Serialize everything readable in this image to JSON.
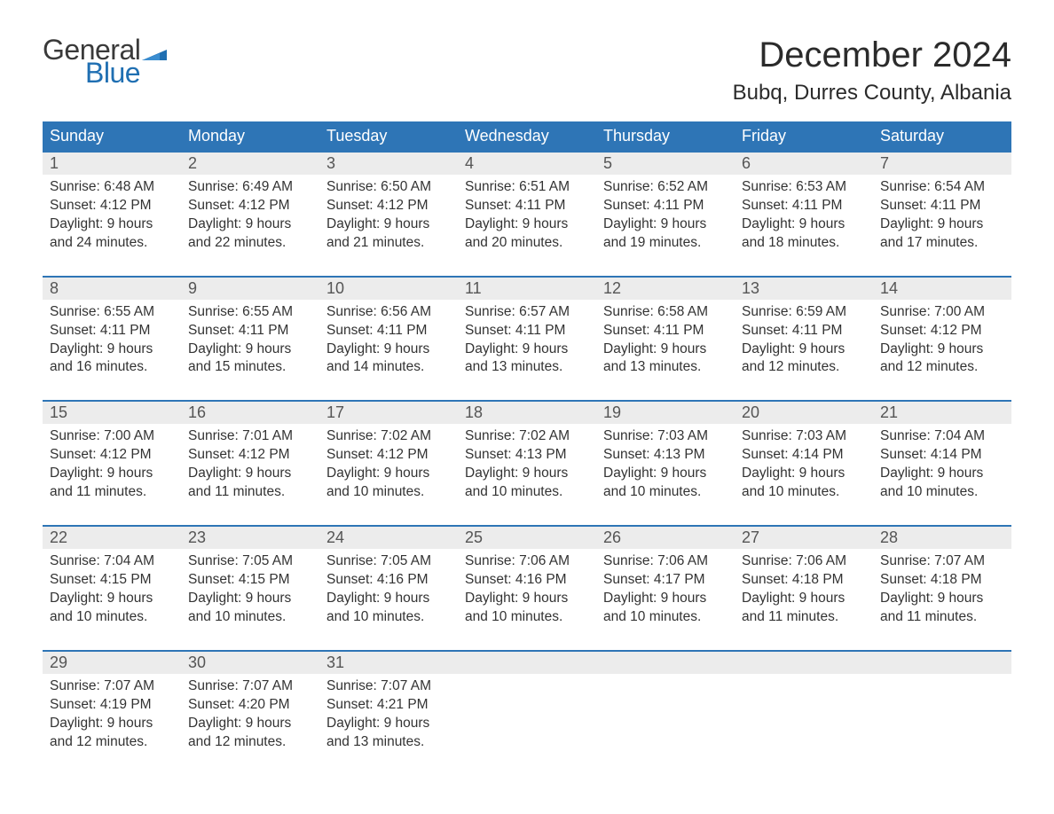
{
  "logo": {
    "general": "General",
    "blue": "Blue"
  },
  "title": "December 2024",
  "location": "Bubq, Durres County, Albania",
  "colors": {
    "header_bg": "#2e75b6",
    "header_text": "#ffffff",
    "daynum_bg": "#ececec",
    "daynum_text": "#555555",
    "body_text": "#333333",
    "rule": "#2e75b6",
    "logo_blue": "#1f6fb2",
    "logo_dark": "#3a3a3a",
    "page_bg": "#ffffff"
  },
  "fonts": {
    "title_size_pt": 30,
    "location_size_pt": 18,
    "weekday_size_pt": 14,
    "daynum_size_pt": 14,
    "body_size_pt": 12
  },
  "weekdays": [
    "Sunday",
    "Monday",
    "Tuesday",
    "Wednesday",
    "Thursday",
    "Friday",
    "Saturday"
  ],
  "weeks": [
    [
      {
        "day": "1",
        "sunrise": "Sunrise: 6:48 AM",
        "sunset": "Sunset: 4:12 PM",
        "dl1": "Daylight: 9 hours",
        "dl2": "and 24 minutes."
      },
      {
        "day": "2",
        "sunrise": "Sunrise: 6:49 AM",
        "sunset": "Sunset: 4:12 PM",
        "dl1": "Daylight: 9 hours",
        "dl2": "and 22 minutes."
      },
      {
        "day": "3",
        "sunrise": "Sunrise: 6:50 AM",
        "sunset": "Sunset: 4:12 PM",
        "dl1": "Daylight: 9 hours",
        "dl2": "and 21 minutes."
      },
      {
        "day": "4",
        "sunrise": "Sunrise: 6:51 AM",
        "sunset": "Sunset: 4:11 PM",
        "dl1": "Daylight: 9 hours",
        "dl2": "and 20 minutes."
      },
      {
        "day": "5",
        "sunrise": "Sunrise: 6:52 AM",
        "sunset": "Sunset: 4:11 PM",
        "dl1": "Daylight: 9 hours",
        "dl2": "and 19 minutes."
      },
      {
        "day": "6",
        "sunrise": "Sunrise: 6:53 AM",
        "sunset": "Sunset: 4:11 PM",
        "dl1": "Daylight: 9 hours",
        "dl2": "and 18 minutes."
      },
      {
        "day": "7",
        "sunrise": "Sunrise: 6:54 AM",
        "sunset": "Sunset: 4:11 PM",
        "dl1": "Daylight: 9 hours",
        "dl2": "and 17 minutes."
      }
    ],
    [
      {
        "day": "8",
        "sunrise": "Sunrise: 6:55 AM",
        "sunset": "Sunset: 4:11 PM",
        "dl1": "Daylight: 9 hours",
        "dl2": "and 16 minutes."
      },
      {
        "day": "9",
        "sunrise": "Sunrise: 6:55 AM",
        "sunset": "Sunset: 4:11 PM",
        "dl1": "Daylight: 9 hours",
        "dl2": "and 15 minutes."
      },
      {
        "day": "10",
        "sunrise": "Sunrise: 6:56 AM",
        "sunset": "Sunset: 4:11 PM",
        "dl1": "Daylight: 9 hours",
        "dl2": "and 14 minutes."
      },
      {
        "day": "11",
        "sunrise": "Sunrise: 6:57 AM",
        "sunset": "Sunset: 4:11 PM",
        "dl1": "Daylight: 9 hours",
        "dl2": "and 13 minutes."
      },
      {
        "day": "12",
        "sunrise": "Sunrise: 6:58 AM",
        "sunset": "Sunset: 4:11 PM",
        "dl1": "Daylight: 9 hours",
        "dl2": "and 13 minutes."
      },
      {
        "day": "13",
        "sunrise": "Sunrise: 6:59 AM",
        "sunset": "Sunset: 4:11 PM",
        "dl1": "Daylight: 9 hours",
        "dl2": "and 12 minutes."
      },
      {
        "day": "14",
        "sunrise": "Sunrise: 7:00 AM",
        "sunset": "Sunset: 4:12 PM",
        "dl1": "Daylight: 9 hours",
        "dl2": "and 12 minutes."
      }
    ],
    [
      {
        "day": "15",
        "sunrise": "Sunrise: 7:00 AM",
        "sunset": "Sunset: 4:12 PM",
        "dl1": "Daylight: 9 hours",
        "dl2": "and 11 minutes."
      },
      {
        "day": "16",
        "sunrise": "Sunrise: 7:01 AM",
        "sunset": "Sunset: 4:12 PM",
        "dl1": "Daylight: 9 hours",
        "dl2": "and 11 minutes."
      },
      {
        "day": "17",
        "sunrise": "Sunrise: 7:02 AM",
        "sunset": "Sunset: 4:12 PM",
        "dl1": "Daylight: 9 hours",
        "dl2": "and 10 minutes."
      },
      {
        "day": "18",
        "sunrise": "Sunrise: 7:02 AM",
        "sunset": "Sunset: 4:13 PM",
        "dl1": "Daylight: 9 hours",
        "dl2": "and 10 minutes."
      },
      {
        "day": "19",
        "sunrise": "Sunrise: 7:03 AM",
        "sunset": "Sunset: 4:13 PM",
        "dl1": "Daylight: 9 hours",
        "dl2": "and 10 minutes."
      },
      {
        "day": "20",
        "sunrise": "Sunrise: 7:03 AM",
        "sunset": "Sunset: 4:14 PM",
        "dl1": "Daylight: 9 hours",
        "dl2": "and 10 minutes."
      },
      {
        "day": "21",
        "sunrise": "Sunrise: 7:04 AM",
        "sunset": "Sunset: 4:14 PM",
        "dl1": "Daylight: 9 hours",
        "dl2": "and 10 minutes."
      }
    ],
    [
      {
        "day": "22",
        "sunrise": "Sunrise: 7:04 AM",
        "sunset": "Sunset: 4:15 PM",
        "dl1": "Daylight: 9 hours",
        "dl2": "and 10 minutes."
      },
      {
        "day": "23",
        "sunrise": "Sunrise: 7:05 AM",
        "sunset": "Sunset: 4:15 PM",
        "dl1": "Daylight: 9 hours",
        "dl2": "and 10 minutes."
      },
      {
        "day": "24",
        "sunrise": "Sunrise: 7:05 AM",
        "sunset": "Sunset: 4:16 PM",
        "dl1": "Daylight: 9 hours",
        "dl2": "and 10 minutes."
      },
      {
        "day": "25",
        "sunrise": "Sunrise: 7:06 AM",
        "sunset": "Sunset: 4:16 PM",
        "dl1": "Daylight: 9 hours",
        "dl2": "and 10 minutes."
      },
      {
        "day": "26",
        "sunrise": "Sunrise: 7:06 AM",
        "sunset": "Sunset: 4:17 PM",
        "dl1": "Daylight: 9 hours",
        "dl2": "and 10 minutes."
      },
      {
        "day": "27",
        "sunrise": "Sunrise: 7:06 AM",
        "sunset": "Sunset: 4:18 PM",
        "dl1": "Daylight: 9 hours",
        "dl2": "and 11 minutes."
      },
      {
        "day": "28",
        "sunrise": "Sunrise: 7:07 AM",
        "sunset": "Sunset: 4:18 PM",
        "dl1": "Daylight: 9 hours",
        "dl2": "and 11 minutes."
      }
    ],
    [
      {
        "day": "29",
        "sunrise": "Sunrise: 7:07 AM",
        "sunset": "Sunset: 4:19 PM",
        "dl1": "Daylight: 9 hours",
        "dl2": "and 12 minutes."
      },
      {
        "day": "30",
        "sunrise": "Sunrise: 7:07 AM",
        "sunset": "Sunset: 4:20 PM",
        "dl1": "Daylight: 9 hours",
        "dl2": "and 12 minutes."
      },
      {
        "day": "31",
        "sunrise": "Sunrise: 7:07 AM",
        "sunset": "Sunset: 4:21 PM",
        "dl1": "Daylight: 9 hours",
        "dl2": "and 13 minutes."
      },
      null,
      null,
      null,
      null
    ]
  ]
}
